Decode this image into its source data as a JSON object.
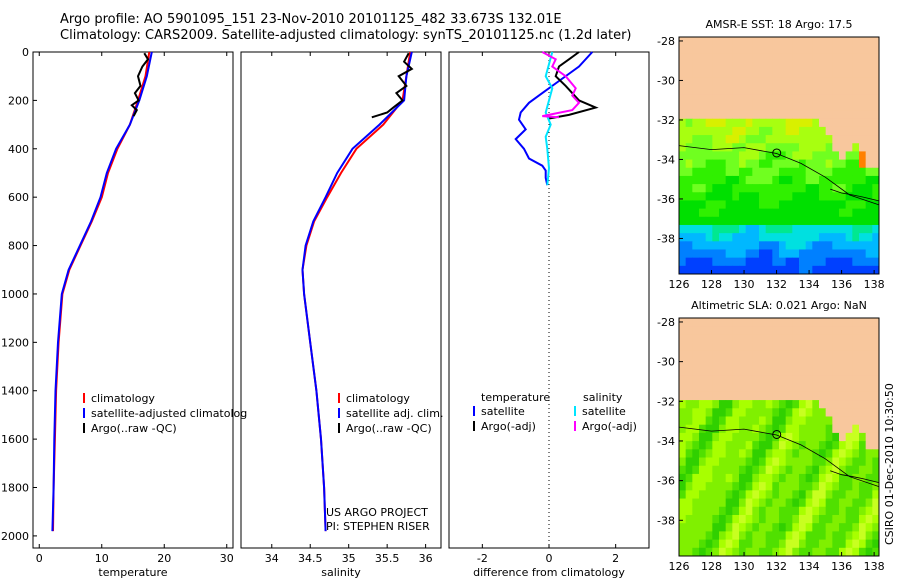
{
  "header": {
    "line1": "Argo profile: AO 5901095_151 23-Nov-2010 20101125_482 33.673S 132.01E",
    "line2": "Climatology: CARS2009. Satellite-adjusted climatology: synTS_20101125.nc (1.2d later)"
  },
  "side_label": "CSIRO 01-Dec-2010 10:30:50",
  "colors": {
    "red": "#ff0000",
    "blue": "#0000ff",
    "black": "#000000",
    "cyan": "#00e5ff",
    "magenta": "#ff00ff",
    "land": "#f8c79d"
  },
  "chart_data": [
    {
      "type": "line",
      "xlabel": "temperature",
      "ylabel": "",
      "xlim": [
        -1,
        31
      ],
      "ylim": [
        2050,
        0
      ],
      "xticks": [
        0,
        10,
        20,
        30
      ],
      "yticks": [
        0,
        200,
        400,
        600,
        800,
        1000,
        1200,
        1400,
        1600,
        1800,
        2000
      ],
      "series": [
        {
          "name": "climatology",
          "color": "#ff0000",
          "x": [
            17.6,
            17,
            15.8,
            14.5,
            12.5,
            11,
            10,
            8.4,
            6.6,
            4.8,
            3.7,
            3.1,
            2.7,
            2.5,
            2.3,
            2.2
          ],
          "y": [
            0,
            100,
            200,
            300,
            400,
            500,
            600,
            700,
            800,
            900,
            1000,
            1200,
            1400,
            1600,
            1800,
            1980
          ]
        },
        {
          "name": "satellite-adjusted climatology",
          "color": "#0000ff",
          "x": [
            18,
            17.2,
            16,
            14.5,
            12.3,
            10.8,
            9.8,
            8.3,
            6.5,
            4.7,
            3.6,
            3,
            2.6,
            2.4,
            2.3,
            2.1
          ],
          "y": [
            0,
            100,
            200,
            300,
            400,
            500,
            600,
            700,
            800,
            900,
            1000,
            1200,
            1400,
            1600,
            1800,
            1980
          ]
        },
        {
          "name": "Argo(..raw -QC)",
          "color": "#000000",
          "x": [
            16.8,
            17.4,
            16.5,
            15.8,
            16.2,
            15.3,
            15.9,
            14.8,
            15.6,
            15.1
          ],
          "y": [
            5,
            30,
            60,
            100,
            140,
            170,
            200,
            220,
            240,
            265
          ]
        }
      ],
      "legend": [
        "climatology",
        "satellite-adjusted climatolog",
        "Argo(..raw -QC)"
      ]
    },
    {
      "type": "line",
      "xlabel": "salinity",
      "ylabel": "",
      "xlim": [
        33.6,
        36.2
      ],
      "ylim": [
        2050,
        0
      ],
      "xticks": [
        34,
        34.5,
        35,
        35.5,
        36
      ],
      "yticks": [],
      "series": [
        {
          "name": "climatology",
          "color": "#ff0000",
          "x": [
            35.8,
            35.75,
            35.7,
            35.45,
            35.1,
            34.9,
            34.72,
            34.55,
            34.45,
            34.4,
            34.42,
            34.5,
            34.58,
            34.64,
            34.68,
            34.7
          ],
          "y": [
            0,
            100,
            200,
            300,
            400,
            500,
            600,
            700,
            800,
            900,
            1000,
            1200,
            1400,
            1600,
            1800,
            1980
          ]
        },
        {
          "name": "satellite adj. clim.",
          "color": "#0000ff",
          "x": [
            35.82,
            35.75,
            35.72,
            35.4,
            35.05,
            34.85,
            34.7,
            34.54,
            34.44,
            34.4,
            34.42,
            34.5,
            34.58,
            34.64,
            34.68,
            34.7
          ],
          "y": [
            0,
            100,
            200,
            300,
            400,
            500,
            600,
            700,
            800,
            900,
            1000,
            1200,
            1400,
            1600,
            1800,
            1980
          ]
        },
        {
          "name": "Argo(..raw -QC)",
          "color": "#000000",
          "x": [
            35.78,
            35.72,
            35.82,
            35.65,
            35.75,
            35.62,
            35.7,
            35.58,
            35.5,
            35.3
          ],
          "y": [
            5,
            40,
            70,
            100,
            140,
            170,
            200,
            230,
            250,
            270
          ]
        }
      ],
      "legend": [
        "climatology",
        "satellite adj. clim.",
        "Argo(..raw -QC)"
      ],
      "annotation": [
        "US ARGO PROJECT",
        "PI: STEPHEN RISER"
      ]
    },
    {
      "type": "line",
      "xlabel": "difference from climatology",
      "ylabel": "",
      "xlim": [
        -3,
        3
      ],
      "ylim": [
        2050,
        0
      ],
      "xticks": [
        -2,
        0,
        2
      ],
      "yticks": [],
      "series": [
        {
          "name": "temperature satellite",
          "color": "#0000ff",
          "x": [
            1.3,
            0.9,
            0.3,
            -0.2,
            -0.6,
            -0.85,
            -0.9,
            -0.7,
            -1.0,
            -0.75,
            -0.6,
            -0.2,
            -0.1,
            -0.1,
            -0.05
          ],
          "y": [
            0,
            60,
            120,
            170,
            210,
            250,
            280,
            320,
            360,
            400,
            440,
            470,
            490,
            520,
            550
          ]
        },
        {
          "name": "temperature Argo(-adj)",
          "color": "#000000",
          "x": [
            0.9,
            0.6,
            0.3,
            0.2,
            0.5,
            0.9,
            1.4,
            0.6,
            0.0
          ],
          "y": [
            0,
            30,
            60,
            100,
            140,
            200,
            230,
            260,
            275
          ]
        },
        {
          "name": "salinity satellite",
          "color": "#00e5ff",
          "x": [
            0.1,
            0.0,
            -0.1,
            0.1,
            0.0,
            -0.1,
            0.05,
            -0.1,
            -0.05,
            0.0,
            -0.05
          ],
          "y": [
            0,
            50,
            100,
            150,
            200,
            250,
            300,
            350,
            400,
            480,
            550
          ]
        },
        {
          "name": "salinity Argo(-adj)",
          "color": "#ff00ff",
          "x": [
            -0.2,
            0.2,
            0.1,
            0.5,
            0.8,
            0.7,
            0.9,
            0.7,
            -0.2,
            0.3
          ],
          "y": [
            0,
            30,
            60,
            100,
            150,
            180,
            210,
            240,
            265,
            270
          ]
        }
      ],
      "legend_headers": [
        "temperature",
        "salinity"
      ],
      "legend": [
        "satellite",
        "Argo(-adj)",
        "satellite",
        "Argo(-adj)"
      ]
    },
    {
      "type": "heatmap",
      "title": "AMSR-E SST: 18 Argo: 17.5",
      "xlim": [
        126,
        138.3
      ],
      "ylim": [
        -39.8,
        -27.8
      ],
      "xticks": [
        126,
        128,
        130,
        132,
        134,
        136,
        138
      ],
      "yticks": [
        -28,
        -30,
        -32,
        -34,
        -36,
        -38
      ],
      "marker": {
        "lon": 132.01,
        "lat": -33.673
      }
    },
    {
      "type": "heatmap",
      "title": "Altimetric SLA: 0.021 Argo: NaN",
      "xlim": [
        126,
        138.3
      ],
      "ylim": [
        -39.8,
        -27.8
      ],
      "xticks": [
        126,
        128,
        130,
        132,
        134,
        136,
        138
      ],
      "yticks": [
        -28,
        -30,
        -32,
        -34,
        -36,
        -38
      ],
      "marker": {
        "lon": 132.01,
        "lat": -33.673
      }
    }
  ]
}
